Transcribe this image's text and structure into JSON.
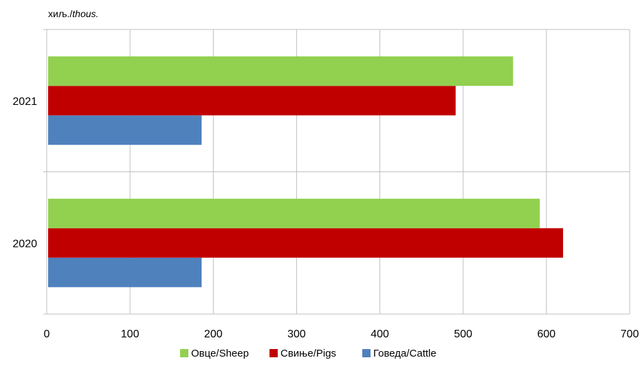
{
  "chart_data": {
    "type": "bar",
    "orientation": "horizontal",
    "unit_label": {
      "prefix": "хиљ./",
      "suffix": "thous."
    },
    "categories": [
      "2020",
      "2021"
    ],
    "series": [
      {
        "name": "Говеда/Cattle",
        "color": "#4f81bd",
        "values": [
          186,
          186
        ]
      },
      {
        "name": "Свиње/Pigs",
        "color": "#c00000",
        "values": [
          620,
          491
        ]
      },
      {
        "name": "Овце/Sheep",
        "color": "#92d050",
        "values": [
          592,
          560
        ]
      }
    ],
    "xlim": [
      0,
      700
    ],
    "xticks": [
      0,
      100,
      200,
      300,
      400,
      500,
      600,
      700
    ],
    "grid": true,
    "legend_position": "bottom"
  }
}
